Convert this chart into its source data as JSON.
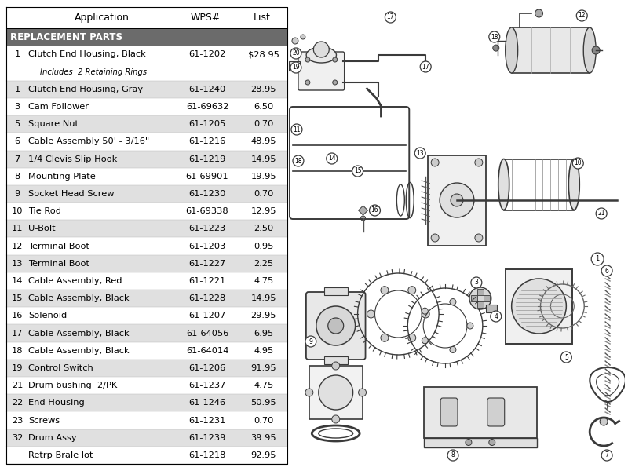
{
  "title_headers": [
    "Application",
    "WPS#",
    "List"
  ],
  "header_row_bg": "#6b6b6b",
  "header_row_fg": "#ffffff",
  "header_row_text": "REPLACEMENT PARTS",
  "bg_color": "#ffffff",
  "shade_color": "#e0e0e0",
  "font_size_col_header": 9,
  "font_size_row": 8.2,
  "font_size_sub": 7.2,
  "font_size_bar": 8.5,
  "rows": [
    {
      "num": "1",
      "app": "Clutch End Housing, Black",
      "wps": "61-1202",
      "list": "$28.95",
      "sub": "Includes  2 Retaining Rings",
      "shade": false
    },
    {
      "num": "1",
      "app": "Clutch End Housing, Gray",
      "wps": "61-1240",
      "list": "28.95",
      "sub": null,
      "shade": true
    },
    {
      "num": "3",
      "app": "Cam Follower",
      "wps": "61-69632",
      "list": "6.50",
      "sub": null,
      "shade": false
    },
    {
      "num": "5",
      "app": "Square Nut",
      "wps": "61-1205",
      "list": "0.70",
      "sub": null,
      "shade": true
    },
    {
      "num": "6",
      "app": "Cable Assembly 50' - 3/16\"",
      "wps": "61-1216",
      "list": "48.95",
      "sub": null,
      "shade": false
    },
    {
      "num": "7",
      "app": "1/4 Clevis Slip Hook",
      "wps": "61-1219",
      "list": "14.95",
      "sub": null,
      "shade": true
    },
    {
      "num": "8",
      "app": "Mounting Plate",
      "wps": "61-69901",
      "list": "19.95",
      "sub": null,
      "shade": false
    },
    {
      "num": "9",
      "app": "Socket Head Screw",
      "wps": "61-1230",
      "list": "0.70",
      "sub": null,
      "shade": true
    },
    {
      "num": "10",
      "app": "Tie Rod",
      "wps": "61-69338",
      "list": "12.95",
      "sub": null,
      "shade": false
    },
    {
      "num": "11",
      "app": "U-Bolt",
      "wps": "61-1223",
      "list": "2.50",
      "sub": null,
      "shade": true
    },
    {
      "num": "12",
      "app": "Terminal Boot",
      "wps": "61-1203",
      "list": "0.95",
      "sub": null,
      "shade": false
    },
    {
      "num": "13",
      "app": "Terminal Boot",
      "wps": "61-1227",
      "list": "2.25",
      "sub": null,
      "shade": true
    },
    {
      "num": "14",
      "app": "Cable Assembly, Red",
      "wps": "61-1221",
      "list": "4.75",
      "sub": null,
      "shade": false
    },
    {
      "num": "15",
      "app": "Cable Assembly, Black",
      "wps": "61-1228",
      "list": "14.95",
      "sub": null,
      "shade": true
    },
    {
      "num": "16",
      "app": "Solenoid",
      "wps": "61-1207",
      "list": "29.95",
      "sub": null,
      "shade": false
    },
    {
      "num": "17",
      "app": "Cable Assembly, Black",
      "wps": "61-64056",
      "list": "6.95",
      "sub": null,
      "shade": true
    },
    {
      "num": "18",
      "app": "Cable Assembly, Black",
      "wps": "61-64014",
      "list": "4.95",
      "sub": null,
      "shade": false
    },
    {
      "num": "19",
      "app": "Control Switch",
      "wps": "61-1206",
      "list": "91.95",
      "sub": null,
      "shade": true
    },
    {
      "num": "21",
      "app": "Drum bushing  2/PK",
      "wps": "61-1237",
      "list": "4.75",
      "sub": null,
      "shade": false
    },
    {
      "num": "22",
      "app": "End Housing",
      "wps": "61-1246",
      "list": "50.95",
      "sub": null,
      "shade": true
    },
    {
      "num": "23",
      "app": "Screws",
      "wps": "61-1231",
      "list": "0.70",
      "sub": null,
      "shade": false
    },
    {
      "num": "32",
      "app": "Drum Assy",
      "wps": "61-1239",
      "list": "39.95",
      "sub": null,
      "shade": true
    },
    {
      "num": "",
      "app": "Retrp Brale lot",
      "wps": "61-1218",
      "list": "92.95",
      "sub": null,
      "shade": false
    }
  ]
}
